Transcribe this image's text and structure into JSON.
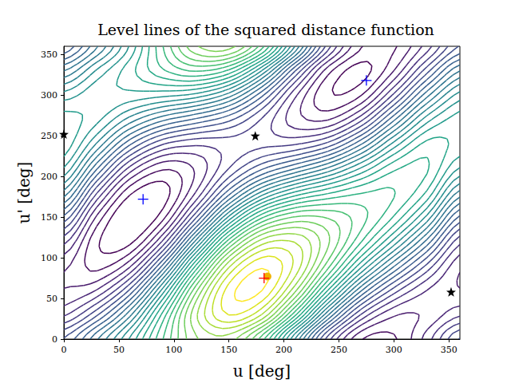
{
  "chart_data": {
    "type": "contour",
    "title": "Level lines of the squared distance function",
    "x_label": "u [deg]",
    "y_label": "u' [deg]",
    "x": [
      0,
      30,
      60,
      90,
      120,
      150,
      180,
      210,
      240,
      270,
      300,
      330,
      360
    ],
    "y": [
      0,
      30,
      60,
      90,
      120,
      150,
      180,
      210,
      240,
      270,
      300,
      330,
      360
    ],
    "z": [
      [
        4.24,
        5.75,
        7.46,
        9.39,
        10.94,
        11.19,
        9.58,
        6.6,
        3.6,
        1.84,
        1.74,
        2.79,
        4.24
      ],
      [
        2.93,
        4.13,
        6.08,
        8.74,
        11.32,
        12.61,
        11.78,
        9.12,
        5.87,
        3.38,
        2.26,
        2.27,
        2.93
      ],
      [
        2.22,
        2.63,
        4.27,
        7.17,
        10.48,
        12.79,
        13.01,
        11.13,
        8.2,
        5.47,
        3.62,
        2.6,
        2.22
      ],
      [
        2.29,
        1.66,
        2.52,
        5.1,
        8.65,
        11.7,
        12.94,
        12.1,
        9.96,
        7.54,
        5.45,
        3.7,
        2.29
      ],
      [
        3.13,
        1.47,
        1.28,
        3.08,
        6.33,
        9.61,
        11.58,
        11.77,
        10.67,
        9.04,
        7.26,
        5.27,
        3.13
      ],
      [
        4.51,
        2.12,
        0.91,
        1.66,
        4.12,
        7.09,
        9.31,
        10.23,
        10.15,
        9.56,
        8.56,
        6.89,
        4.51
      ],
      [
        6.06,
        3.43,
        1.49,
        1.22,
        2.63,
        4.82,
        6.72,
        7.88,
        8.53,
        8.97,
        9.02,
        8.13,
        6.06
      ],
      [
        7.37,
        5.06,
        2.87,
        1.87,
        2.26,
        3.4,
        4.51,
        5.36,
        6.26,
        7.43,
        8.5,
        8.65,
        7.37
      ],
      [
        8.08,
        6.55,
        4.68,
        3.44,
        3.09,
        3.21,
        3.28,
        3.35,
        3.93,
        5.34,
        7.14,
        8.32,
        8.08
      ],
      [
        8.01,
        7.52,
        6.43,
        5.51,
        4.92,
        4.31,
        3.36,
        2.38,
        2.17,
        3.27,
        5.31,
        7.22,
        8.01
      ],
      [
        7.17,
        7.71,
        7.66,
        7.52,
        7.25,
        6.4,
        4.71,
        2.71,
        1.46,
        1.77,
        3.5,
        5.65,
        7.17
      ],
      [
        5.79,
        7.06,
        8.04,
        8.94,
        9.45,
        8.91,
        6.99,
        4.25,
        1.98,
        1.25,
        2.2,
        4.03,
        5.79
      ],
      [
        4.24,
        5.75,
        7.46,
        9.39,
        10.94,
        11.19,
        9.58,
        6.6,
        3.6,
        1.84,
        1.74,
        2.79,
        4.24
      ]
    ],
    "levels": [
      1.4,
      1.8,
      2.2,
      2.6,
      3.0,
      3.4,
      3.8,
      4.2,
      4.6,
      5.0,
      5.4,
      5.8,
      6.2,
      6.6,
      7.0,
      7.4,
      7.8,
      8.2,
      8.6,
      9.0,
      9.4,
      9.8,
      10.2,
      10.6,
      11.0,
      11.4,
      11.8,
      12.2,
      12.6,
      13.0
    ],
    "colors": [
      "#440154",
      "#460b5e",
      "#481a6c",
      "#482475",
      "#472f7d",
      "#443a83",
      "#414487",
      "#3d4d8a",
      "#38598c",
      "#355f8d",
      "#30698e",
      "#2c738e",
      "#2a788e",
      "#26828e",
      "#228c8d",
      "#21918c",
      "#1f9a8a",
      "#20a386",
      "#22a884",
      "#2ab07f",
      "#35b779",
      "#44bf70",
      "#58c765",
      "#6ccd5a",
      "#7ad151",
      "#8fd744",
      "#a8db34",
      "#bddf26",
      "#dce319",
      "#fde725"
    ],
    "xlim": [
      0,
      360
    ],
    "ylim": [
      0,
      360
    ],
    "xticks": [
      0,
      50,
      100,
      150,
      200,
      250,
      300,
      350
    ],
    "yticks": [
      0,
      50,
      100,
      150,
      200,
      250,
      300,
      350
    ],
    "grid": false,
    "series": [
      {
        "marker": "plus",
        "color": "#0000ff",
        "x": [
          72,
          275
        ],
        "y": [
          172,
          318
        ]
      },
      {
        "marker": "star",
        "color": "#000000",
        "x": [
          0,
          174,
          352
        ],
        "y": [
          252,
          250,
          58
        ]
      },
      {
        "marker": "circle",
        "color": "#f0b000",
        "x": [
          185
        ],
        "y": [
          77
        ]
      },
      {
        "marker": "plus",
        "color": "#ff0000",
        "x": [
          182
        ],
        "y": [
          75
        ]
      }
    ]
  }
}
